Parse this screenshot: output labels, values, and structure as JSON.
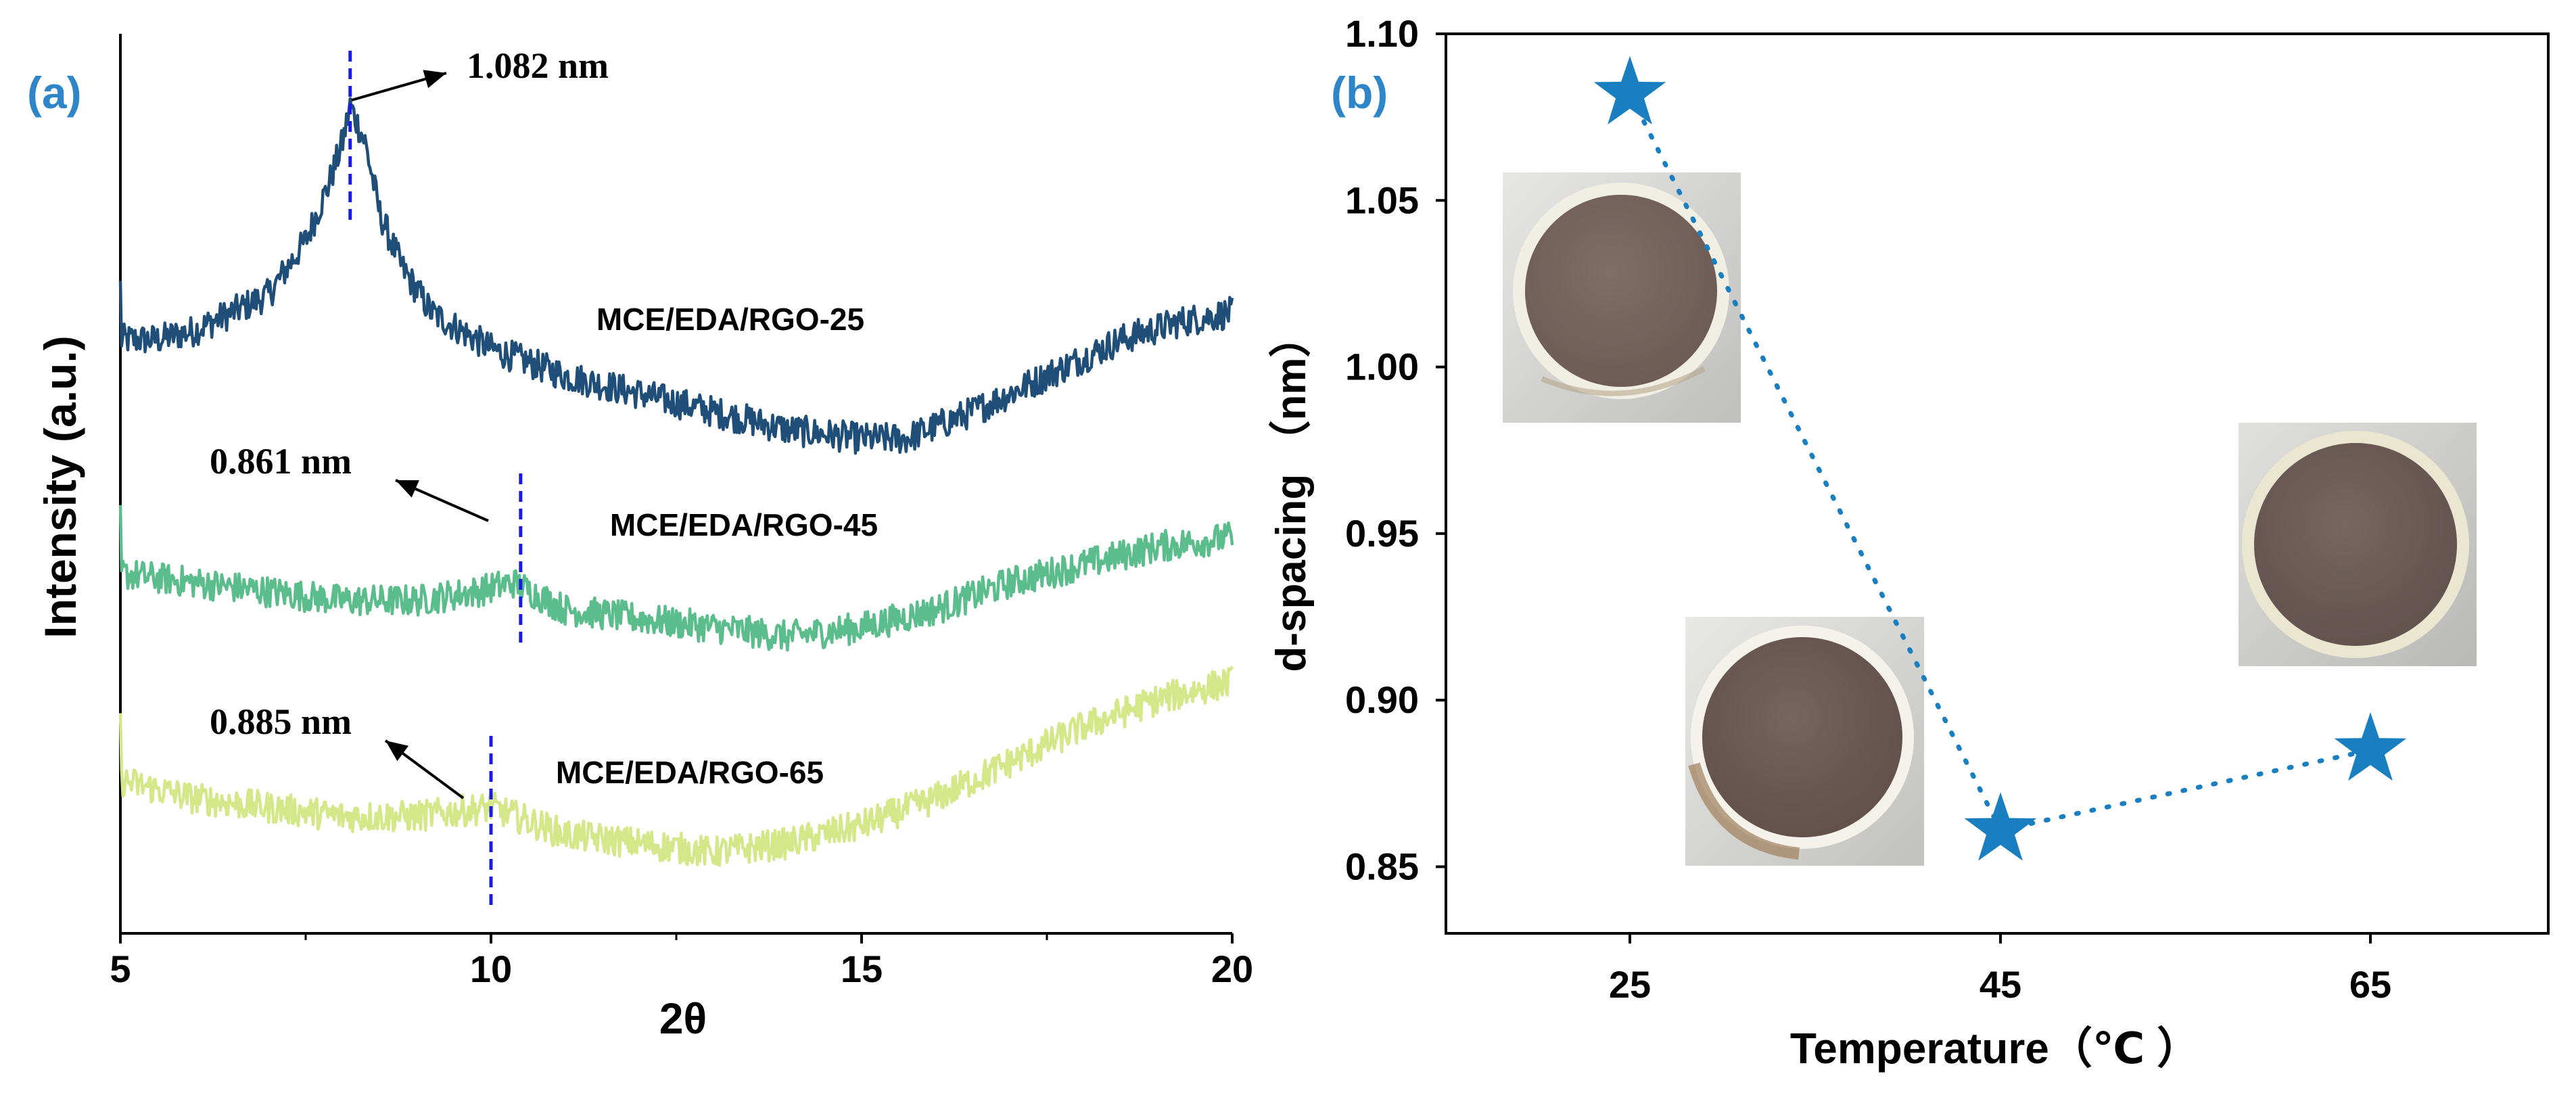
{
  "chart_data": [
    {
      "type": "line",
      "panel_label": "(a)",
      "xlabel": "2θ",
      "ylabel": "Intensity (a.u.)",
      "xlim": [
        5,
        20
      ],
      "x_ticks": [
        5,
        10,
        15,
        20
      ],
      "series": [
        {
          "name": "MCE/EDA/RGO-25",
          "color": "#1f4e79",
          "points": [
            [
              5.0,
              0.66
            ],
            [
              5.5,
              0.66
            ],
            [
              6.0,
              0.67
            ],
            [
              6.5,
              0.69
            ],
            [
              7.0,
              0.71
            ],
            [
              7.5,
              0.77
            ],
            [
              7.8,
              0.83
            ],
            [
              8.0,
              0.88
            ],
            [
              8.1,
              0.92
            ],
            [
              8.3,
              0.88
            ],
            [
              8.5,
              0.8
            ],
            [
              8.8,
              0.74
            ],
            [
              9.2,
              0.69
            ],
            [
              10.0,
              0.65
            ],
            [
              11.0,
              0.62
            ],
            [
              12.0,
              0.6
            ],
            [
              13.0,
              0.58
            ],
            [
              14.0,
              0.56
            ],
            [
              15.0,
              0.55
            ],
            [
              15.6,
              0.55
            ],
            [
              16.5,
              0.58
            ],
            [
              17.5,
              0.62
            ],
            [
              18.5,
              0.66
            ],
            [
              19.3,
              0.68
            ],
            [
              20.0,
              0.69
            ]
          ]
        },
        {
          "name": "MCE/EDA/RGO-45",
          "color": "#5bbd8b",
          "points": [
            [
              5.0,
              0.4
            ],
            [
              6.0,
              0.39
            ],
            [
              7.0,
              0.38
            ],
            [
              8.0,
              0.37
            ],
            [
              9.0,
              0.37
            ],
            [
              9.8,
              0.38
            ],
            [
              10.3,
              0.39
            ],
            [
              11.0,
              0.36
            ],
            [
              12.0,
              0.35
            ],
            [
              13.0,
              0.34
            ],
            [
              14.0,
              0.33
            ],
            [
              15.0,
              0.34
            ],
            [
              16.0,
              0.36
            ],
            [
              17.0,
              0.39
            ],
            [
              18.0,
              0.41
            ],
            [
              19.0,
              0.43
            ],
            [
              20.0,
              0.44
            ]
          ]
        },
        {
          "name": "MCE/EDA/RGO-65",
          "color": "#d4e88a",
          "points": [
            [
              5.0,
              0.17
            ],
            [
              6.0,
              0.15
            ],
            [
              7.0,
              0.14
            ],
            [
              8.0,
              0.13
            ],
            [
              9.0,
              0.13
            ],
            [
              10.0,
              0.14
            ],
            [
              11.0,
              0.11
            ],
            [
              12.0,
              0.1
            ],
            [
              13.0,
              0.09
            ],
            [
              14.0,
              0.1
            ],
            [
              15.0,
              0.12
            ],
            [
              16.0,
              0.15
            ],
            [
              17.0,
              0.19
            ],
            [
              18.0,
              0.23
            ],
            [
              19.0,
              0.26
            ],
            [
              20.0,
              0.28
            ]
          ]
        }
      ],
      "annotations": [
        {
          "text": "1.082 nm",
          "x": 8.1,
          "series": "MCE/EDA/RGO-25"
        },
        {
          "text": "0.861 nm",
          "x": 10.4,
          "series": "MCE/EDA/RGO-45"
        },
        {
          "text": "0.885 nm",
          "x": 10.0,
          "series": "MCE/EDA/RGO-65"
        }
      ]
    },
    {
      "type": "scatter",
      "panel_label": "(b)",
      "xlabel": "Temperature（℃ ）",
      "ylabel": "d-spacing （nm）",
      "categories": [
        "25",
        "45",
        "65"
      ],
      "values": [
        1.082,
        0.861,
        0.885
      ],
      "ylim": [
        0.83,
        1.1
      ],
      "y_ticks": [
        "0.85",
        "0.90",
        "0.95",
        "1.00",
        "1.05",
        "1.10"
      ],
      "marker": "star",
      "color": "#1a7fc1",
      "line_style": "dotted",
      "inset_photos": [
        "membrane photo 25 ℃",
        "membrane photo 45 ℃",
        "membrane photo 65 ℃"
      ]
    }
  ]
}
